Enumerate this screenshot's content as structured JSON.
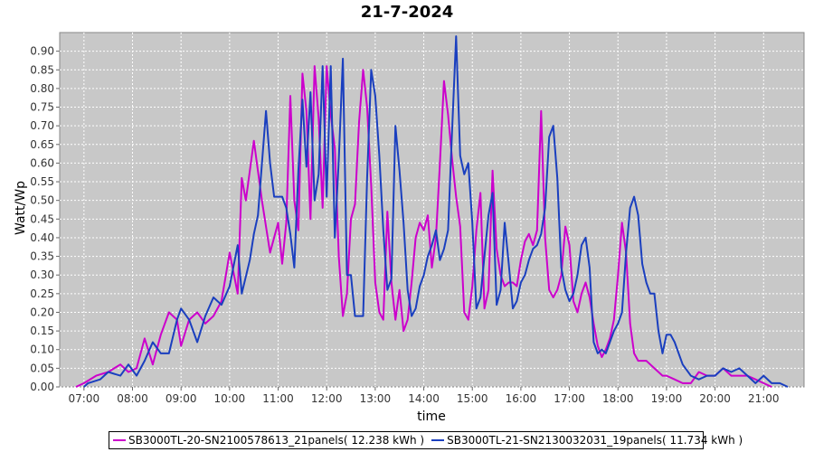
{
  "chart_data": {
    "type": "line",
    "title": "21-7-2024",
    "xlabel": "time",
    "ylabel": "Watt/Wp",
    "x_ticks": [
      "07:00",
      "08:00",
      "09:00",
      "10:00",
      "11:00",
      "12:00",
      "13:00",
      "14:00",
      "15:00",
      "16:00",
      "17:00",
      "18:00",
      "19:00",
      "20:00",
      "21:00"
    ],
    "y_ticks": [
      "0.00",
      "0.05",
      "0.10",
      "0.15",
      "0.20",
      "0.25",
      "0.30",
      "0.35",
      "0.40",
      "0.45",
      "0.50",
      "0.55",
      "0.60",
      "0.65",
      "0.70",
      "0.75",
      "0.80",
      "0.85",
      "0.90"
    ],
    "xlim": [
      "06:30",
      "21:50"
    ],
    "ylim": [
      0,
      0.95
    ],
    "grid": true,
    "legend_position": "bottom",
    "series": [
      {
        "name": "SB3000TL-20-SN2100578613_21panels( 12.238 kWh )",
        "color": "#cc00cc",
        "points": [
          [
            "06:50",
            0.0
          ],
          [
            "07:00",
            0.01
          ],
          [
            "07:15",
            0.03
          ],
          [
            "07:30",
            0.04
          ],
          [
            "07:45",
            0.06
          ],
          [
            "07:55",
            0.04
          ],
          [
            "08:05",
            0.05
          ],
          [
            "08:15",
            0.13
          ],
          [
            "08:25",
            0.06
          ],
          [
            "08:35",
            0.14
          ],
          [
            "08:45",
            0.2
          ],
          [
            "08:55",
            0.18
          ],
          [
            "09:00",
            0.11
          ],
          [
            "09:10",
            0.18
          ],
          [
            "09:20",
            0.2
          ],
          [
            "09:30",
            0.17
          ],
          [
            "09:40",
            0.19
          ],
          [
            "09:50",
            0.23
          ],
          [
            "10:00",
            0.36
          ],
          [
            "10:10",
            0.25
          ],
          [
            "10:15",
            0.56
          ],
          [
            "10:20",
            0.5
          ],
          [
            "10:30",
            0.66
          ],
          [
            "10:40",
            0.5
          ],
          [
            "10:50",
            0.36
          ],
          [
            "11:00",
            0.44
          ],
          [
            "11:05",
            0.33
          ],
          [
            "11:10",
            0.44
          ],
          [
            "11:15",
            0.78
          ],
          [
            "11:20",
            0.5
          ],
          [
            "11:25",
            0.42
          ],
          [
            "11:30",
            0.84
          ],
          [
            "11:35",
            0.74
          ],
          [
            "11:40",
            0.45
          ],
          [
            "11:45",
            0.86
          ],
          [
            "11:50",
            0.72
          ],
          [
            "11:55",
            0.48
          ],
          [
            "12:00",
            0.86
          ],
          [
            "12:05",
            0.73
          ],
          [
            "12:10",
            0.64
          ],
          [
            "12:15",
            0.35
          ],
          [
            "12:20",
            0.19
          ],
          [
            "12:25",
            0.25
          ],
          [
            "12:30",
            0.45
          ],
          [
            "12:35",
            0.49
          ],
          [
            "12:40",
            0.71
          ],
          [
            "12:45",
            0.85
          ],
          [
            "12:50",
            0.75
          ],
          [
            "12:55",
            0.54
          ],
          [
            "13:00",
            0.28
          ],
          [
            "13:05",
            0.2
          ],
          [
            "13:10",
            0.18
          ],
          [
            "13:15",
            0.47
          ],
          [
            "13:20",
            0.28
          ],
          [
            "13:25",
            0.18
          ],
          [
            "13:30",
            0.26
          ],
          [
            "13:35",
            0.15
          ],
          [
            "13:40",
            0.18
          ],
          [
            "13:45",
            0.28
          ],
          [
            "13:50",
            0.4
          ],
          [
            "13:55",
            0.44
          ],
          [
            "14:00",
            0.42
          ],
          [
            "14:05",
            0.46
          ],
          [
            "14:10",
            0.32
          ],
          [
            "14:15",
            0.4
          ],
          [
            "14:20",
            0.6
          ],
          [
            "14:25",
            0.82
          ],
          [
            "14:30",
            0.73
          ],
          [
            "14:35",
            0.61
          ],
          [
            "14:40",
            0.51
          ],
          [
            "14:45",
            0.43
          ],
          [
            "14:50",
            0.2
          ],
          [
            "14:55",
            0.18
          ],
          [
            "15:00",
            0.27
          ],
          [
            "15:05",
            0.42
          ],
          [
            "15:10",
            0.52
          ],
          [
            "15:15",
            0.21
          ],
          [
            "15:20",
            0.26
          ],
          [
            "15:25",
            0.58
          ],
          [
            "15:30",
            0.37
          ],
          [
            "15:35",
            0.3
          ],
          [
            "15:40",
            0.27
          ],
          [
            "15:45",
            0.28
          ],
          [
            "15:50",
            0.28
          ],
          [
            "15:55",
            0.27
          ],
          [
            "16:00",
            0.34
          ],
          [
            "16:05",
            0.39
          ],
          [
            "16:10",
            0.41
          ],
          [
            "16:15",
            0.38
          ],
          [
            "16:20",
            0.42
          ],
          [
            "16:25",
            0.74
          ],
          [
            "16:30",
            0.4
          ],
          [
            "16:35",
            0.26
          ],
          [
            "16:40",
            0.24
          ],
          [
            "16:45",
            0.26
          ],
          [
            "16:50",
            0.3
          ],
          [
            "16:55",
            0.43
          ],
          [
            "17:00",
            0.38
          ],
          [
            "17:05",
            0.23
          ],
          [
            "17:10",
            0.2
          ],
          [
            "17:15",
            0.25
          ],
          [
            "17:20",
            0.28
          ],
          [
            "17:25",
            0.24
          ],
          [
            "17:30",
            0.17
          ],
          [
            "17:35",
            0.11
          ],
          [
            "17:40",
            0.08
          ],
          [
            "17:45",
            0.1
          ],
          [
            "17:50",
            0.13
          ],
          [
            "17:55",
            0.18
          ],
          [
            "18:00",
            0.3
          ],
          [
            "18:05",
            0.44
          ],
          [
            "18:10",
            0.36
          ],
          [
            "18:15",
            0.17
          ],
          [
            "18:20",
            0.09
          ],
          [
            "18:25",
            0.07
          ],
          [
            "18:30",
            0.07
          ],
          [
            "18:35",
            0.07
          ],
          [
            "18:40",
            0.06
          ],
          [
            "18:45",
            0.05
          ],
          [
            "18:50",
            0.04
          ],
          [
            "18:55",
            0.03
          ],
          [
            "19:00",
            0.03
          ],
          [
            "19:10",
            0.02
          ],
          [
            "19:20",
            0.01
          ],
          [
            "19:30",
            0.01
          ],
          [
            "19:40",
            0.04
          ],
          [
            "19:50",
            0.03
          ],
          [
            "20:00",
            0.03
          ],
          [
            "20:10",
            0.05
          ],
          [
            "20:20",
            0.03
          ],
          [
            "20:30",
            0.03
          ],
          [
            "20:40",
            0.03
          ],
          [
            "20:50",
            0.02
          ],
          [
            "21:00",
            0.01
          ],
          [
            "21:10",
            0.0
          ]
        ]
      },
      {
        "name": "SB3000TL-21-SN2130032031_19panels( 11.734 kWh )",
        "color": "#1a3fbf",
        "points": [
          [
            "07:00",
            0.0
          ],
          [
            "07:05",
            0.01
          ],
          [
            "07:20",
            0.02
          ],
          [
            "07:30",
            0.04
          ],
          [
            "07:45",
            0.03
          ],
          [
            "07:55",
            0.06
          ],
          [
            "08:05",
            0.03
          ],
          [
            "08:15",
            0.07
          ],
          [
            "08:25",
            0.12
          ],
          [
            "08:35",
            0.09
          ],
          [
            "08:45",
            0.09
          ],
          [
            "08:55",
            0.18
          ],
          [
            "09:00",
            0.21
          ],
          [
            "09:10",
            0.18
          ],
          [
            "09:20",
            0.12
          ],
          [
            "09:30",
            0.19
          ],
          [
            "09:40",
            0.24
          ],
          [
            "09:50",
            0.22
          ],
          [
            "10:00",
            0.27
          ],
          [
            "10:10",
            0.38
          ],
          [
            "10:15",
            0.25
          ],
          [
            "10:25",
            0.34
          ],
          [
            "10:30",
            0.41
          ],
          [
            "10:35",
            0.46
          ],
          [
            "10:45",
            0.74
          ],
          [
            "10:50",
            0.6
          ],
          [
            "10:55",
            0.51
          ],
          [
            "11:00",
            0.51
          ],
          [
            "11:05",
            0.51
          ],
          [
            "11:10",
            0.48
          ],
          [
            "11:15",
            0.41
          ],
          [
            "11:20",
            0.32
          ],
          [
            "11:25",
            0.58
          ],
          [
            "11:30",
            0.77
          ],
          [
            "11:35",
            0.59
          ],
          [
            "11:40",
            0.79
          ],
          [
            "11:45",
            0.5
          ],
          [
            "11:50",
            0.57
          ],
          [
            "11:55",
            0.86
          ],
          [
            "12:00",
            0.51
          ],
          [
            "12:05",
            0.86
          ],
          [
            "12:10",
            0.4
          ],
          [
            "12:15",
            0.61
          ],
          [
            "12:20",
            0.88
          ],
          [
            "12:25",
            0.3
          ],
          [
            "12:30",
            0.3
          ],
          [
            "12:35",
            0.19
          ],
          [
            "12:40",
            0.19
          ],
          [
            "12:45",
            0.19
          ],
          [
            "12:50",
            0.56
          ],
          [
            "12:55",
            0.85
          ],
          [
            "13:00",
            0.78
          ],
          [
            "13:05",
            0.62
          ],
          [
            "13:10",
            0.42
          ],
          [
            "13:15",
            0.26
          ],
          [
            "13:20",
            0.29
          ],
          [
            "13:25",
            0.7
          ],
          [
            "13:30",
            0.58
          ],
          [
            "13:35",
            0.44
          ],
          [
            "13:40",
            0.26
          ],
          [
            "13:45",
            0.19
          ],
          [
            "13:50",
            0.21
          ],
          [
            "13:55",
            0.27
          ],
          [
            "14:00",
            0.3
          ],
          [
            "14:05",
            0.35
          ],
          [
            "14:10",
            0.38
          ],
          [
            "14:15",
            0.42
          ],
          [
            "14:20",
            0.34
          ],
          [
            "14:25",
            0.37
          ],
          [
            "14:30",
            0.42
          ],
          [
            "14:35",
            0.69
          ],
          [
            "14:40",
            0.94
          ],
          [
            "14:45",
            0.62
          ],
          [
            "14:50",
            0.57
          ],
          [
            "14:55",
            0.6
          ],
          [
            "15:00",
            0.44
          ],
          [
            "15:05",
            0.21
          ],
          [
            "15:10",
            0.24
          ],
          [
            "15:15",
            0.35
          ],
          [
            "15:20",
            0.46
          ],
          [
            "15:25",
            0.52
          ],
          [
            "15:30",
            0.22
          ],
          [
            "15:35",
            0.26
          ],
          [
            "15:40",
            0.44
          ],
          [
            "15:45",
            0.33
          ],
          [
            "15:50",
            0.21
          ],
          [
            "15:55",
            0.23
          ],
          [
            "16:00",
            0.28
          ],
          [
            "16:05",
            0.3
          ],
          [
            "16:10",
            0.34
          ],
          [
            "16:15",
            0.37
          ],
          [
            "16:20",
            0.38
          ],
          [
            "16:25",
            0.41
          ],
          [
            "16:30",
            0.48
          ],
          [
            "16:35",
            0.67
          ],
          [
            "16:40",
            0.7
          ],
          [
            "16:45",
            0.56
          ],
          [
            "16:50",
            0.32
          ],
          [
            "16:55",
            0.26
          ],
          [
            "17:00",
            0.23
          ],
          [
            "17:05",
            0.25
          ],
          [
            "17:10",
            0.3
          ],
          [
            "17:15",
            0.38
          ],
          [
            "17:20",
            0.4
          ],
          [
            "17:25",
            0.32
          ],
          [
            "17:30",
            0.12
          ],
          [
            "17:35",
            0.09
          ],
          [
            "17:40",
            0.1
          ],
          [
            "17:45",
            0.09
          ],
          [
            "17:50",
            0.12
          ],
          [
            "17:55",
            0.15
          ],
          [
            "18:00",
            0.17
          ],
          [
            "18:05",
            0.2
          ],
          [
            "18:10",
            0.36
          ],
          [
            "18:15",
            0.48
          ],
          [
            "18:20",
            0.51
          ],
          [
            "18:25",
            0.46
          ],
          [
            "18:30",
            0.33
          ],
          [
            "18:35",
            0.28
          ],
          [
            "18:40",
            0.25
          ],
          [
            "18:45",
            0.25
          ],
          [
            "18:50",
            0.15
          ],
          [
            "18:55",
            0.09
          ],
          [
            "19:00",
            0.14
          ],
          [
            "19:05",
            0.14
          ],
          [
            "19:10",
            0.12
          ],
          [
            "19:20",
            0.06
          ],
          [
            "19:30",
            0.03
          ],
          [
            "19:40",
            0.02
          ],
          [
            "19:50",
            0.03
          ],
          [
            "20:00",
            0.03
          ],
          [
            "20:10",
            0.05
          ],
          [
            "20:20",
            0.04
          ],
          [
            "20:30",
            0.05
          ],
          [
            "20:40",
            0.03
          ],
          [
            "20:50",
            0.01
          ],
          [
            "21:00",
            0.03
          ],
          [
            "21:10",
            0.01
          ],
          [
            "21:20",
            0.01
          ],
          [
            "21:30",
            0.0
          ]
        ]
      }
    ]
  }
}
